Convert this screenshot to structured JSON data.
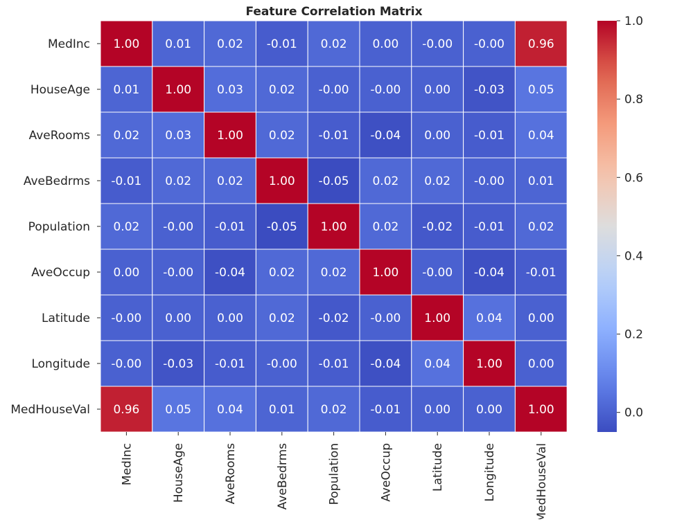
{
  "chart_data": {
    "type": "heatmap",
    "title": "Feature Correlation Matrix",
    "xlabel": "",
    "ylabel": "",
    "row_labels": [
      "MedInc",
      "HouseAge",
      "AveRooms",
      "AveBedrms",
      "Population",
      "AveOccup",
      "Latitude",
      "Longitude",
      "MedHouseVal"
    ],
    "col_labels": [
      "MedInc",
      "HouseAge",
      "AveRooms",
      "AveBedrms",
      "Population",
      "AveOccup",
      "Latitude",
      "Longitude",
      "MedHouseVal"
    ],
    "values": [
      [
        1.0,
        0.01,
        0.02,
        -0.01,
        0.02,
        0.0,
        -0.0,
        -0.0,
        0.96
      ],
      [
        0.01,
        1.0,
        0.03,
        0.02,
        -0.0,
        -0.0,
        0.0,
        -0.03,
        0.05
      ],
      [
        0.02,
        0.03,
        1.0,
        0.02,
        -0.01,
        -0.04,
        0.0,
        -0.01,
        0.04
      ],
      [
        -0.01,
        0.02,
        0.02,
        1.0,
        -0.05,
        0.02,
        0.02,
        -0.0,
        0.01
      ],
      [
        0.02,
        -0.0,
        -0.01,
        -0.05,
        1.0,
        0.02,
        -0.02,
        -0.01,
        0.02
      ],
      [
        0.0,
        -0.0,
        -0.04,
        0.02,
        0.02,
        1.0,
        -0.0,
        -0.04,
        -0.01
      ],
      [
        -0.0,
        0.0,
        0.0,
        0.02,
        -0.02,
        -0.0,
        1.0,
        0.04,
        0.0
      ],
      [
        -0.0,
        -0.03,
        -0.01,
        -0.0,
        -0.01,
        -0.04,
        0.04,
        1.0,
        0.0
      ],
      [
        0.96,
        0.05,
        0.04,
        0.01,
        0.02,
        -0.01,
        0.0,
        0.0,
        1.0
      ]
    ],
    "cell_labels": [
      [
        "1.00",
        "0.01",
        "0.02",
        "-0.01",
        "0.02",
        "0.00",
        "-0.00",
        "-0.00",
        "0.96"
      ],
      [
        "0.01",
        "1.00",
        "0.03",
        "0.02",
        "-0.00",
        "-0.00",
        "0.00",
        "-0.03",
        "0.05"
      ],
      [
        "0.02",
        "0.03",
        "1.00",
        "0.02",
        "-0.01",
        "-0.04",
        "0.00",
        "-0.01",
        "0.04"
      ],
      [
        "-0.01",
        "0.02",
        "0.02",
        "1.00",
        "-0.05",
        "0.02",
        "0.02",
        "-0.00",
        "0.01"
      ],
      [
        "0.02",
        "-0.00",
        "-0.01",
        "-0.05",
        "1.00",
        "0.02",
        "-0.02",
        "-0.01",
        "0.02"
      ],
      [
        "0.00",
        "-0.00",
        "-0.04",
        "0.02",
        "0.02",
        "1.00",
        "-0.00",
        "-0.04",
        "-0.01"
      ],
      [
        "-0.00",
        "0.00",
        "0.00",
        "0.02",
        "-0.02",
        "-0.00",
        "1.00",
        "0.04",
        "0.00"
      ],
      [
        "-0.00",
        "-0.03",
        "-0.01",
        "-0.00",
        "-0.01",
        "-0.04",
        "0.04",
        "1.00",
        "0.00"
      ],
      [
        "0.96",
        "0.05",
        "0.04",
        "0.01",
        "0.02",
        "-0.01",
        "0.00",
        "0.00",
        "1.00"
      ]
    ],
    "colormap": "coolwarm",
    "colorbar": {
      "range": [
        -0.05,
        1.0
      ],
      "ticks": [
        0.0,
        0.2,
        0.4,
        0.6,
        0.8,
        1.0
      ],
      "tick_labels": [
        "0.0",
        "0.2",
        "0.4",
        "0.6",
        "0.8",
        "1.0"
      ]
    },
    "grid_color": "#ffffff",
    "text_color": "#ffffff",
    "axis_text_color": "#262626"
  }
}
